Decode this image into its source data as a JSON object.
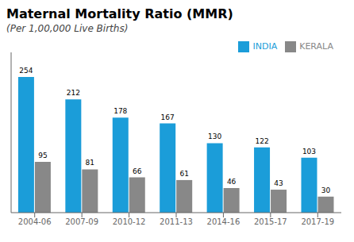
{
  "chart_data": {
    "type": "bar",
    "title": "Maternal Mortality Ratio (MMR)",
    "subtitle": "(Per 1,00,000 Live Births)",
    "categories": [
      "2004-06",
      "2007-09",
      "2010-12",
      "2011-13",
      "2014-16",
      "2015-17",
      "2017-19"
    ],
    "series": [
      {
        "name": "INDIA",
        "color": "#1b9dd9",
        "values": [
          254,
          212,
          178,
          167,
          130,
          122,
          103
        ]
      },
      {
        "name": "KERALA",
        "color": "#888888",
        "values": [
          95,
          81,
          66,
          61,
          46,
          43,
          30
        ]
      }
    ],
    "ylim": [
      0,
      300
    ],
    "data_labels": true,
    "tick_labels": "x",
    "legend": "upper right",
    "grid": false
  }
}
